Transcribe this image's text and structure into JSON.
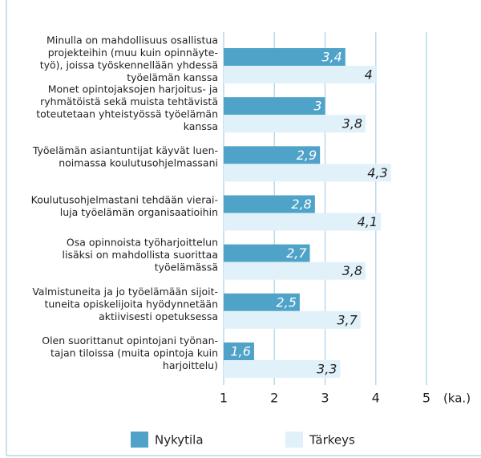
{
  "chart_data": {
    "type": "hbar",
    "categories": [
      [
        "Minulla on mahdollisuus osallistua",
        "projekteihin (muu kuin opinnäyte-",
        "työ), joissa työskennellään yhdessä",
        "työelämän kanssa"
      ],
      [
        "Monet opintojaksojen harjoitus- ja",
        "ryhmätöistä sekä muista tehtävistä",
        "toteutetaan yhteistyössä työelämän",
        "kanssa"
      ],
      [
        "Työelämän asiantuntijat käyvät luen-",
        "noimassa koulutusohjelmassani"
      ],
      [
        "Koulutusohjelmastani tehdään vierai-",
        "luja työelämän organisaatioihin"
      ],
      [
        "Osa opinnoista työharjoittelun",
        "lisäksi on mahdollista suorittaa",
        "työelämässä"
      ],
      [
        "Valmistuneita ja jo työelämään sijoit-",
        "tuneita opiskelijoita hyödynnetään",
        "aktiivisesti opetuksessa"
      ],
      [
        "Olen suorittanut opintojani työnan-",
        "tajan tiloissa (muita opintoja kuin",
        "harjoittelu)"
      ]
    ],
    "series": [
      {
        "name": "Nykytila",
        "color": "#4fa3c8",
        "values": [
          3.4,
          3,
          2.9,
          2.8,
          2.7,
          2.5,
          1.6
        ],
        "value_labels": [
          "3,4",
          "3",
          "2,9",
          "2,8",
          "2,7",
          "2,5",
          "1,6"
        ]
      },
      {
        "name": "Tärkeys",
        "color": "#e1f1f9",
        "values": [
          4,
          3.8,
          4.3,
          4.1,
          3.8,
          3.7,
          3.3
        ],
        "value_labels": [
          "4",
          "3,8",
          "4,3",
          "4,1",
          "3,8",
          "3,7",
          "3,3"
        ]
      }
    ],
    "xlim": [
      1,
      5
    ],
    "xticks": [
      1,
      2,
      3,
      4,
      5
    ],
    "x_label": "(ka.)",
    "grid": true
  }
}
